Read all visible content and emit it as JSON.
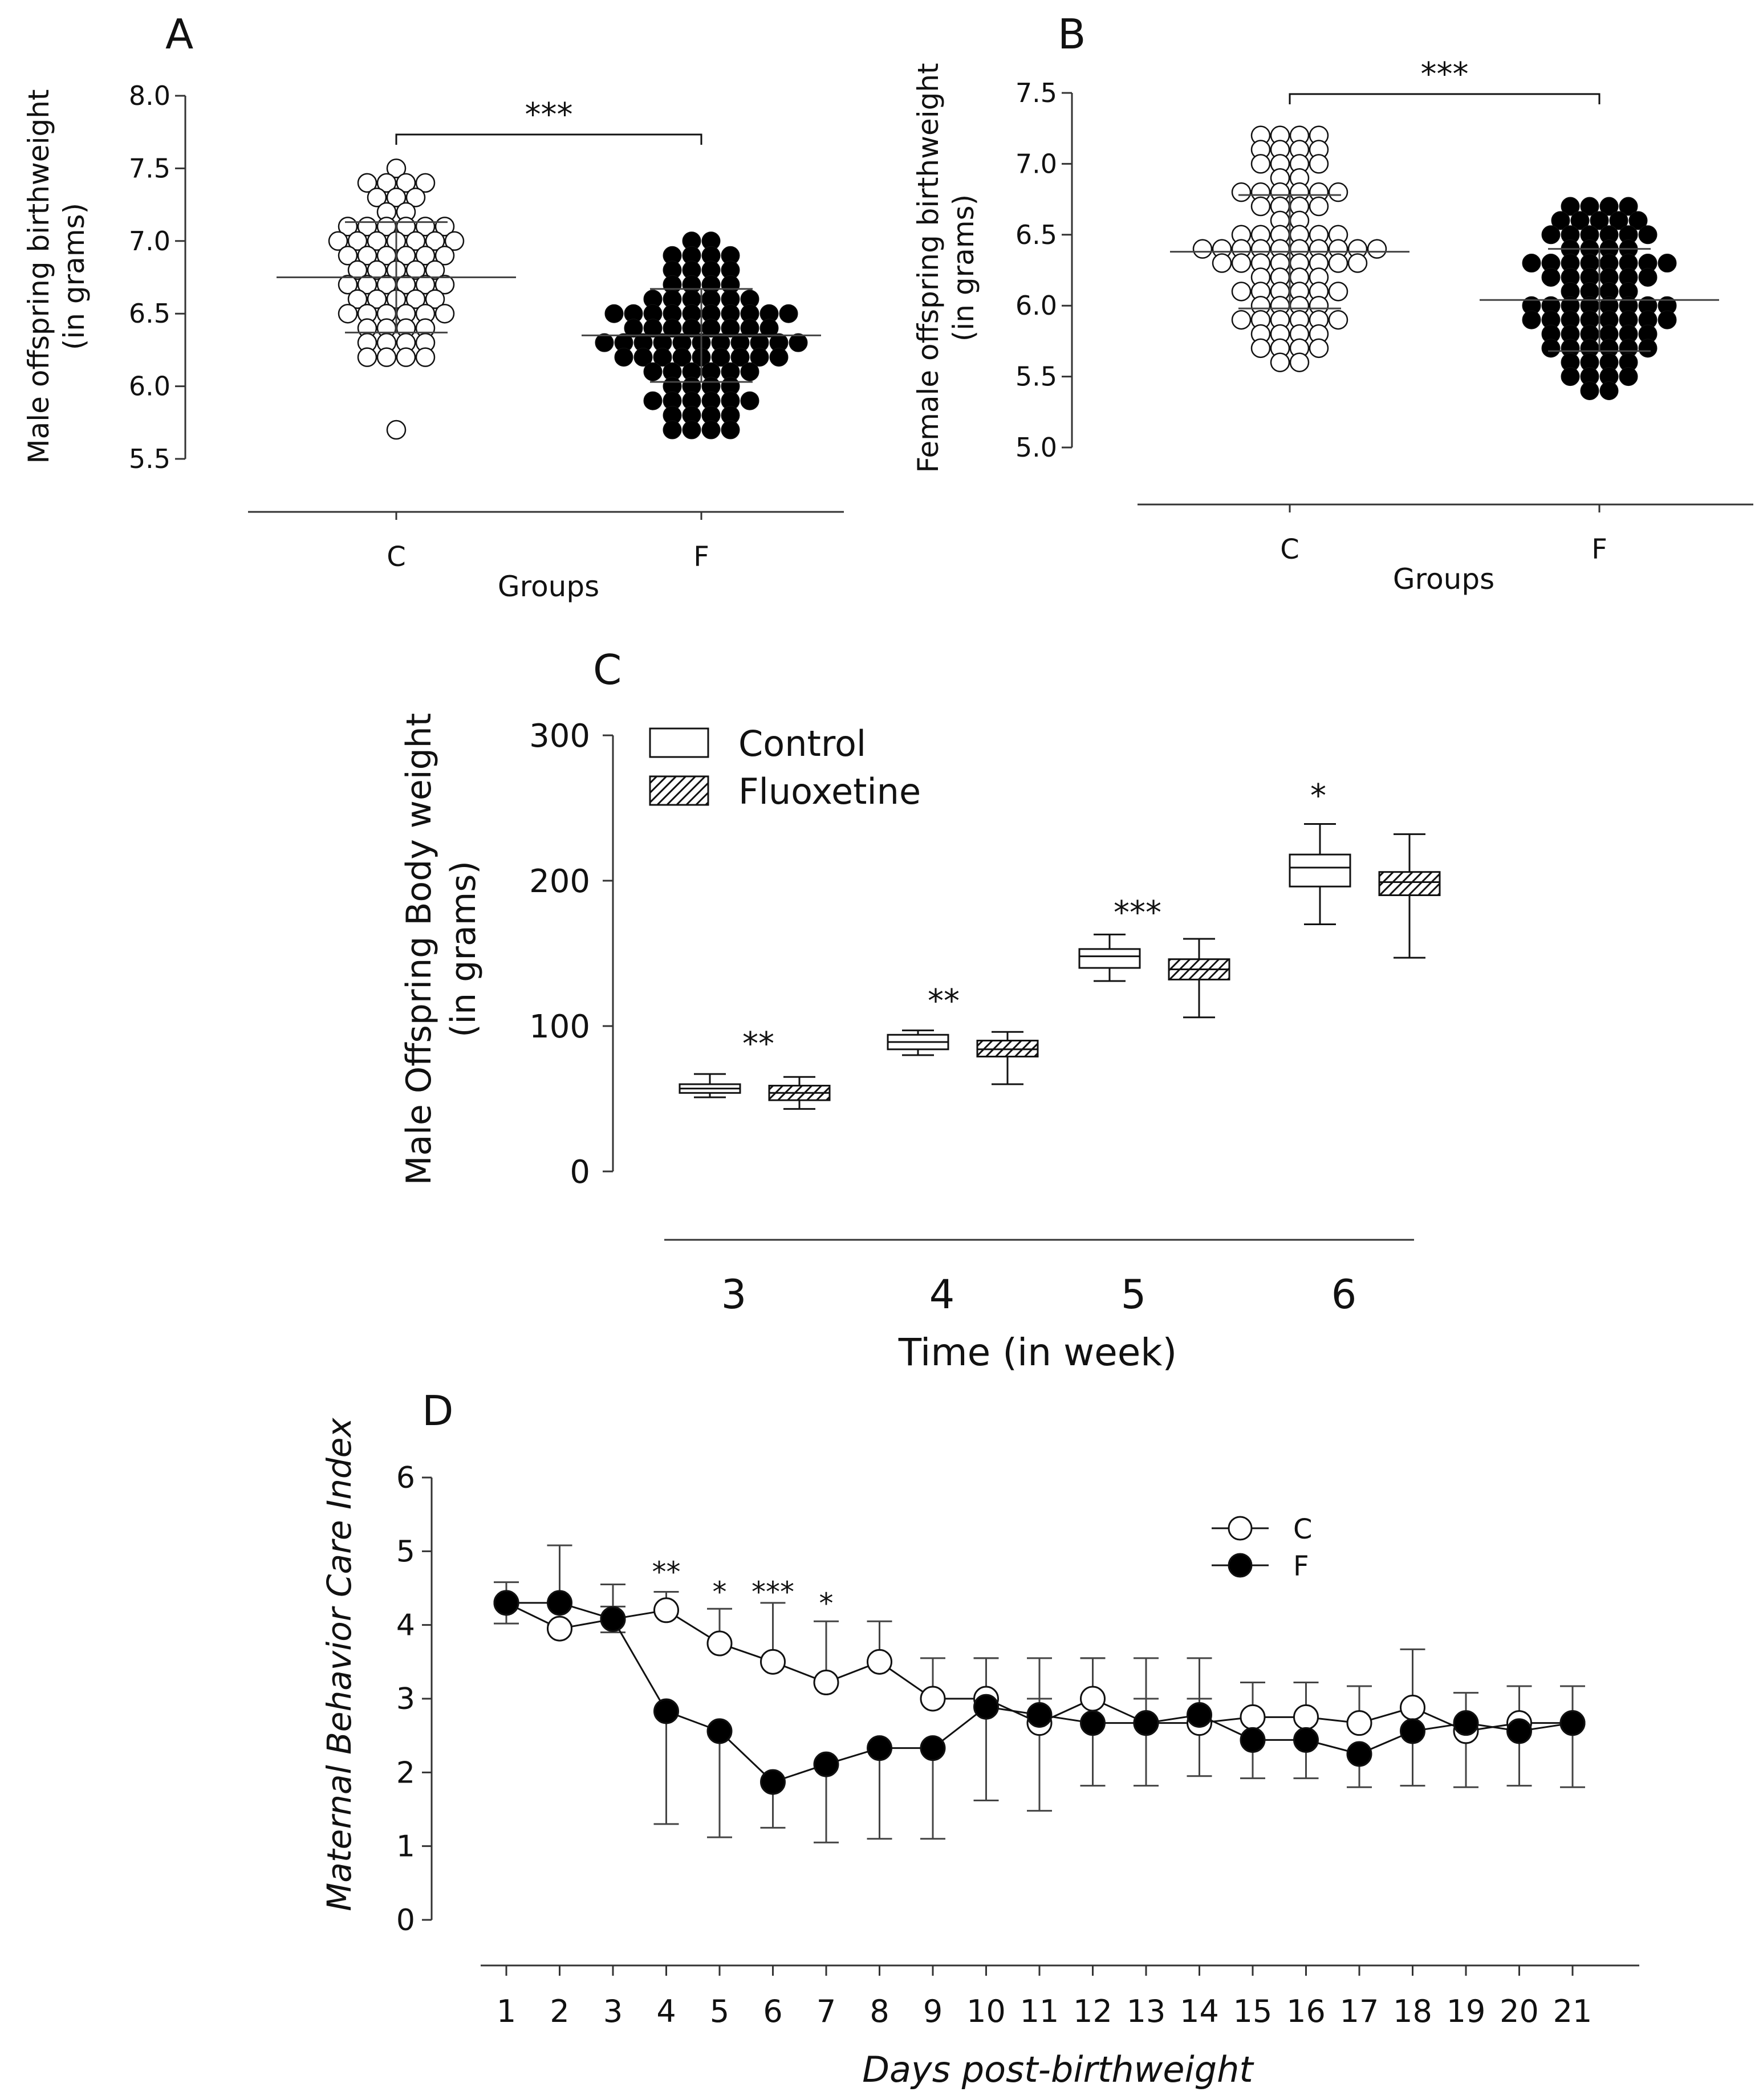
{
  "colors": {
    "ink": "#111111",
    "control_fill": "#ffffff",
    "fluoxetine_fill": "#000000",
    "axis": "#333333"
  },
  "chart_data": [
    {
      "id": "A",
      "panel_label": "A",
      "type": "scatter",
      "ylabel_lines": [
        "Male offspring birthweight",
        "(in grams)"
      ],
      "xlabel": "Groups",
      "categories": [
        "C",
        "F"
      ],
      "ylim": [
        5.5,
        8.0
      ],
      "yticks": [
        "5.5",
        "6.0",
        "6.5",
        "7.0",
        "7.5",
        "8.0"
      ],
      "significance": "***",
      "series": [
        {
          "name": "C",
          "filled": false,
          "mean": 6.75,
          "sd_low": 6.37,
          "sd_high": 7.13,
          "rows": [
            {
              "y": 7.5,
              "n": 1
            },
            {
              "y": 7.4,
              "n": 4
            },
            {
              "y": 7.3,
              "n": 3
            },
            {
              "y": 7.2,
              "n": 2
            },
            {
              "y": 7.1,
              "n": 6
            },
            {
              "y": 7.0,
              "n": 7
            },
            {
              "y": 6.9,
              "n": 6
            },
            {
              "y": 6.8,
              "n": 5
            },
            {
              "y": 6.7,
              "n": 6
            },
            {
              "y": 6.6,
              "n": 5
            },
            {
              "y": 6.5,
              "n": 6
            },
            {
              "y": 6.4,
              "n": 4
            },
            {
              "y": 6.3,
              "n": 4
            },
            {
              "y": 6.2,
              "n": 4
            },
            {
              "y": 5.7,
              "n": 1
            }
          ]
        },
        {
          "name": "F",
          "filled": true,
          "mean": 6.35,
          "sd_low": 6.03,
          "sd_high": 6.67,
          "rows": [
            {
              "y": 7.0,
              "n": 2
            },
            {
              "y": 6.9,
              "n": 4
            },
            {
              "y": 6.8,
              "n": 4
            },
            {
              "y": 6.7,
              "n": 4
            },
            {
              "y": 6.6,
              "n": 6
            },
            {
              "y": 6.5,
              "n": 10
            },
            {
              "y": 6.4,
              "n": 8
            },
            {
              "y": 6.3,
              "n": 11
            },
            {
              "y": 6.2,
              "n": 9
            },
            {
              "y": 6.1,
              "n": 6
            },
            {
              "y": 6.0,
              "n": 4
            },
            {
              "y": 5.9,
              "n": 6
            },
            {
              "y": 5.8,
              "n": 4
            },
            {
              "y": 5.7,
              "n": 4
            }
          ]
        }
      ]
    },
    {
      "id": "B",
      "panel_label": "B",
      "type": "scatter",
      "ylabel_lines": [
        "Female offspring birthweight",
        "(in grams)"
      ],
      "xlabel": "Groups",
      "categories": [
        "C",
        "F"
      ],
      "ylim": [
        5.0,
        7.5
      ],
      "yticks": [
        "5.0",
        "5.5",
        "6.0",
        "6.5",
        "7.0",
        "7.5"
      ],
      "significance": "***",
      "series": [
        {
          "name": "C",
          "filled": false,
          "mean": 6.38,
          "sd_low": 5.98,
          "sd_high": 6.78,
          "rows": [
            {
              "y": 7.2,
              "n": 4
            },
            {
              "y": 7.1,
              "n": 4
            },
            {
              "y": 7.0,
              "n": 4
            },
            {
              "y": 6.9,
              "n": 2
            },
            {
              "y": 6.8,
              "n": 6
            },
            {
              "y": 6.7,
              "n": 4
            },
            {
              "y": 6.6,
              "n": 2
            },
            {
              "y": 6.5,
              "n": 6
            },
            {
              "y": 6.4,
              "n": 10
            },
            {
              "y": 6.3,
              "n": 8
            },
            {
              "y": 6.2,
              "n": 4
            },
            {
              "y": 6.1,
              "n": 6
            },
            {
              "y": 6.0,
              "n": 4
            },
            {
              "y": 5.9,
              "n": 6
            },
            {
              "y": 5.8,
              "n": 4
            },
            {
              "y": 5.7,
              "n": 4
            },
            {
              "y": 5.6,
              "n": 2
            }
          ]
        },
        {
          "name": "F",
          "filled": true,
          "mean": 6.04,
          "sd_low": 5.68,
          "sd_high": 6.4,
          "rows": [
            {
              "y": 6.7,
              "n": 4
            },
            {
              "y": 6.6,
              "n": 5
            },
            {
              "y": 6.5,
              "n": 6
            },
            {
              "y": 6.4,
              "n": 4
            },
            {
              "y": 6.3,
              "n": 8
            },
            {
              "y": 6.2,
              "n": 6
            },
            {
              "y": 6.1,
              "n": 4
            },
            {
              "y": 6.0,
              "n": 8
            },
            {
              "y": 5.9,
              "n": 8
            },
            {
              "y": 5.8,
              "n": 6
            },
            {
              "y": 5.7,
              "n": 6
            },
            {
              "y": 5.6,
              "n": 4
            },
            {
              "y": 5.5,
              "n": 4
            },
            {
              "y": 5.4,
              "n": 2
            }
          ]
        }
      ]
    },
    {
      "id": "C",
      "panel_label": "C",
      "type": "box",
      "ylabel_lines": [
        "Male Offspring Body weight",
        "(in grams)"
      ],
      "xlabel": "Time (in week)",
      "categories": [
        "3",
        "4",
        "5",
        "6"
      ],
      "ylim": [
        0,
        300
      ],
      "yticks": [
        "0",
        "100",
        "200",
        "300"
      ],
      "legend": [
        "Control",
        "Fluoxetine"
      ],
      "significance": [
        "**",
        "**",
        "***",
        "*"
      ],
      "series": [
        {
          "name": "Control",
          "boxes": [
            {
              "min": 51,
              "q1": 54,
              "median": 57,
              "q3": 60,
              "max": 67
            },
            {
              "min": 80,
              "q1": 84,
              "median": 89,
              "q3": 94,
              "max": 97
            },
            {
              "min": 131,
              "q1": 140,
              "median": 148,
              "q3": 153,
              "max": 163
            },
            {
              "min": 170,
              "q1": 196,
              "median": 209,
              "q3": 218,
              "max": 239
            }
          ]
        },
        {
          "name": "Fluoxetine",
          "boxes": [
            {
              "min": 43,
              "q1": 49,
              "median": 54,
              "q3": 59,
              "max": 65
            },
            {
              "min": 60,
              "q1": 79,
              "median": 84,
              "q3": 90,
              "max": 96
            },
            {
              "min": 106,
              "q1": 132,
              "median": 139,
              "q3": 146,
              "max": 160
            },
            {
              "min": 147,
              "q1": 190,
              "median": 199,
              "q3": 206,
              "max": 232
            }
          ]
        }
      ]
    },
    {
      "id": "D",
      "panel_label": "D",
      "type": "line",
      "ylabel": "Maternal Behavior Care Index",
      "xlabel": "Days post-birthweight",
      "x": [
        "1",
        "2",
        "3",
        "4",
        "5",
        "6",
        "7",
        "8",
        "9",
        "10",
        "11",
        "12",
        "13",
        "14",
        "15",
        "16",
        "17",
        "18",
        "19",
        "20",
        "21"
      ],
      "ylim": [
        0,
        6
      ],
      "yticks": [
        "0",
        "1",
        "2",
        "3",
        "4",
        "5",
        "6"
      ],
      "significance": [
        {
          "day": 4,
          "label": "**"
        },
        {
          "day": 5,
          "label": "*"
        },
        {
          "day": 6,
          "label": "***"
        },
        {
          "day": 7,
          "label": "*"
        }
      ],
      "series": [
        {
          "name": "C",
          "filled": false,
          "values": [
            4.3,
            3.95,
            4.08,
            4.2,
            3.75,
            3.5,
            3.22,
            3.5,
            3.0,
            3.0,
            2.67,
            3.0,
            2.67,
            2.67,
            2.75,
            2.75,
            2.67,
            2.88,
            2.56,
            2.67,
            2.67
          ],
          "err_high": [
            4.58,
            4.0,
            4.25,
            4.45,
            4.22,
            4.3,
            4.05,
            4.05,
            3.55,
            3.55,
            3.0,
            3.55,
            3.0,
            3.0,
            3.22,
            3.22,
            3.17,
            3.67,
            3.08,
            3.17,
            3.17
          ]
        },
        {
          "name": "F",
          "filled": true,
          "values": [
            4.3,
            4.3,
            4.08,
            2.83,
            2.56,
            1.87,
            2.11,
            2.33,
            2.33,
            2.89,
            2.78,
            2.67,
            2.67,
            2.78,
            2.44,
            2.44,
            2.25,
            2.56,
            2.67,
            2.56,
            2.67
          ],
          "err_low": [
            4.02,
            4.3,
            3.9,
            1.3,
            1.12,
            1.25,
            1.05,
            1.1,
            1.1,
            1.62,
            1.48,
            1.82,
            1.82,
            1.95,
            1.92,
            1.92,
            1.8,
            1.82,
            1.8,
            1.82,
            1.8
          ],
          "err_high": [
            4.3,
            5.08,
            4.55,
            2.83,
            2.56,
            1.87,
            2.11,
            2.33,
            2.33,
            3.55,
            3.55,
            3.55,
            3.55,
            3.55,
            2.44,
            2.44,
            2.25,
            2.56,
            2.67,
            2.56,
            3.17
          ]
        }
      ]
    }
  ]
}
